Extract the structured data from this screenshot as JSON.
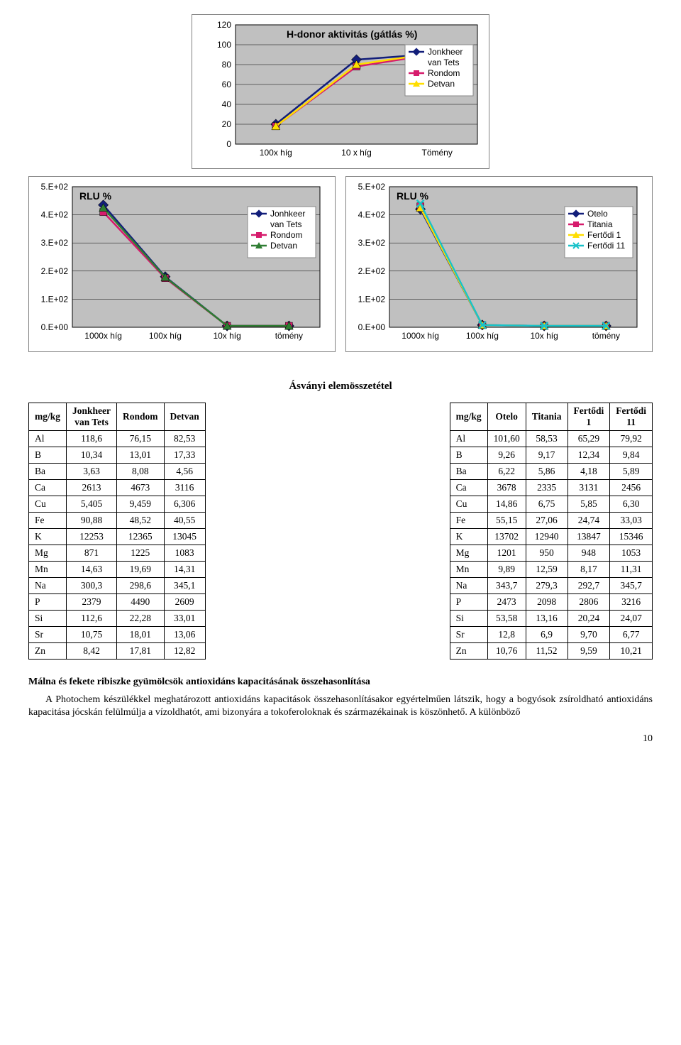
{
  "chart1": {
    "title": "H-donor aktivitás (gátlás %)",
    "y_ticks": [
      0,
      20,
      40,
      60,
      80,
      100,
      120
    ],
    "x_labels": [
      "100x híg",
      "10 x híg",
      "Tömény"
    ],
    "series": [
      {
        "name": "Jonkheer van Tets",
        "color": "#121e7a",
        "marker": "diamond",
        "y": [
          20,
          85,
          91
        ]
      },
      {
        "name": "Rondom",
        "color": "#d61b6c",
        "marker": "square",
        "y": [
          18,
          78,
          91
        ]
      },
      {
        "name": "Detvan",
        "color": "#ffde00",
        "marker": "triangle",
        "y": [
          18,
          80,
          92
        ]
      }
    ],
    "legend_lines": [
      "Jonkheer",
      "van Tets",
      "Rondom",
      "Detvan"
    ]
  },
  "chart2": {
    "title": "RLU %",
    "y_ticks": [
      "0.E+00",
      "1.E+02",
      "2.E+02",
      "3.E+02",
      "4.E+02",
      "5.E+02"
    ],
    "x_labels": [
      "1000x híg",
      "100x híg",
      "10x híg",
      "tömény"
    ],
    "series": [
      {
        "name": "Jonhkeer van Tets",
        "color": "#121e7a",
        "marker": "diamond",
        "y": [
          435,
          180,
          5,
          5
        ]
      },
      {
        "name": "Rondom",
        "color": "#d61b6c",
        "marker": "square",
        "y": [
          410,
          175,
          5,
          5
        ]
      },
      {
        "name": "Detvan",
        "color": "#2e7d32",
        "marker": "triangle",
        "y": [
          425,
          178,
          5,
          5
        ]
      }
    ],
    "legend_lines": [
      "Jonhkeer",
      "van Tets",
      "Rondom",
      "Detvan"
    ]
  },
  "chart3": {
    "title": "RLU %",
    "y_ticks": [
      "0.E+00",
      "1.E+02",
      "2.E+02",
      "3.E+02",
      "4.E+02",
      "5.E+02"
    ],
    "x_labels": [
      "1000x híg",
      "100x híg",
      "10x híg",
      "tömény"
    ],
    "series": [
      {
        "name": "Otelo",
        "color": "#121e7a",
        "marker": "diamond",
        "y": [
          420,
          8,
          5,
          5
        ]
      },
      {
        "name": "Titania",
        "color": "#d61b6c",
        "marker": "square",
        "y": [
          430,
          8,
          5,
          5
        ]
      },
      {
        "name": "Fertődi 1",
        "color": "#ffde00",
        "marker": "triangle",
        "y": [
          425,
          8,
          5,
          5
        ]
      },
      {
        "name": "Fertődi 11",
        "color": "#19c2c9",
        "marker": "x",
        "y": [
          440,
          8,
          5,
          5
        ]
      }
    ],
    "legend_lines": [
      "Otelo",
      "Titania",
      "Fertődi 1",
      "Fertődi 11"
    ]
  },
  "section_title": "Ásványi elemösszetétel",
  "table_left": {
    "columns": [
      "mg/kg",
      "Jonkheer van Tets",
      "Rondom",
      "Detvan"
    ],
    "rows": [
      [
        "Al",
        "118,6",
        "76,15",
        "82,53"
      ],
      [
        "B",
        "10,34",
        "13,01",
        "17,33"
      ],
      [
        "Ba",
        "3,63",
        "8,08",
        "4,56"
      ],
      [
        "Ca",
        "2613",
        "4673",
        "3116"
      ],
      [
        "Cu",
        "5,405",
        "9,459",
        "6,306"
      ],
      [
        "Fe",
        "90,88",
        "48,52",
        "40,55"
      ],
      [
        "K",
        "12253",
        "12365",
        "13045"
      ],
      [
        "Mg",
        "871",
        "1225",
        "1083"
      ],
      [
        "Mn",
        "14,63",
        "19,69",
        "14,31"
      ],
      [
        "Na",
        "300,3",
        "298,6",
        "345,1"
      ],
      [
        "P",
        "2379",
        "4490",
        "2609"
      ],
      [
        "Si",
        "112,6",
        "22,28",
        "33,01"
      ],
      [
        "Sr",
        "10,75",
        "18,01",
        "13,06"
      ],
      [
        "Zn",
        "8,42",
        "17,81",
        "12,82"
      ]
    ]
  },
  "table_right": {
    "columns": [
      "mg/kg",
      "Otelo",
      "Titania",
      "Fertődi 1",
      "Fertődi 11"
    ],
    "rows": [
      [
        "Al",
        "101,60",
        "58,53",
        "65,29",
        "79,92"
      ],
      [
        "B",
        "9,26",
        "9,17",
        "12,34",
        "9,84"
      ],
      [
        "Ba",
        "6,22",
        "5,86",
        "4,18",
        "5,89"
      ],
      [
        "Ca",
        "3678",
        "2335",
        "3131",
        "2456"
      ],
      [
        "Cu",
        "14,86",
        "6,75",
        "5,85",
        "6,30"
      ],
      [
        "Fe",
        "55,15",
        "27,06",
        "24,74",
        "33,03"
      ],
      [
        "K",
        "13702",
        "12940",
        "13847",
        "15346"
      ],
      [
        "Mg",
        "1201",
        "950",
        "948",
        "1053"
      ],
      [
        "Mn",
        "9,89",
        "12,59",
        "8,17",
        "11,31"
      ],
      [
        "Na",
        "343,7",
        "279,3",
        "292,7",
        "345,7"
      ],
      [
        "P",
        "2473",
        "2098",
        "2806",
        "3216"
      ],
      [
        "Si",
        "53,58",
        "13,16",
        "20,24",
        "24,07"
      ],
      [
        "Sr",
        "12,8",
        "6,9",
        "9,70",
        "6,77"
      ],
      [
        "Zn",
        "10,76",
        "11,52",
        "9,59",
        "10,21"
      ]
    ]
  },
  "subtitle": "Málna és fekete ribiszke gyümölcsök antioxidáns kapacitásának összehasonlítása",
  "paragraph": "A Photochem készülékkel meghatározott antioxidáns kapacitások összehasonlításakor egyértelműen látszik, hogy a bogyósok zsíroldható antioxidáns kapacitása jócskán felülmúlja a vízoldhatót, ami bizonyára a tokoferoloknak és származékainak is köszönhető. A különböző",
  "page_number": "10",
  "grid_color": "#000000",
  "plot_bg": "#c0c0c0"
}
